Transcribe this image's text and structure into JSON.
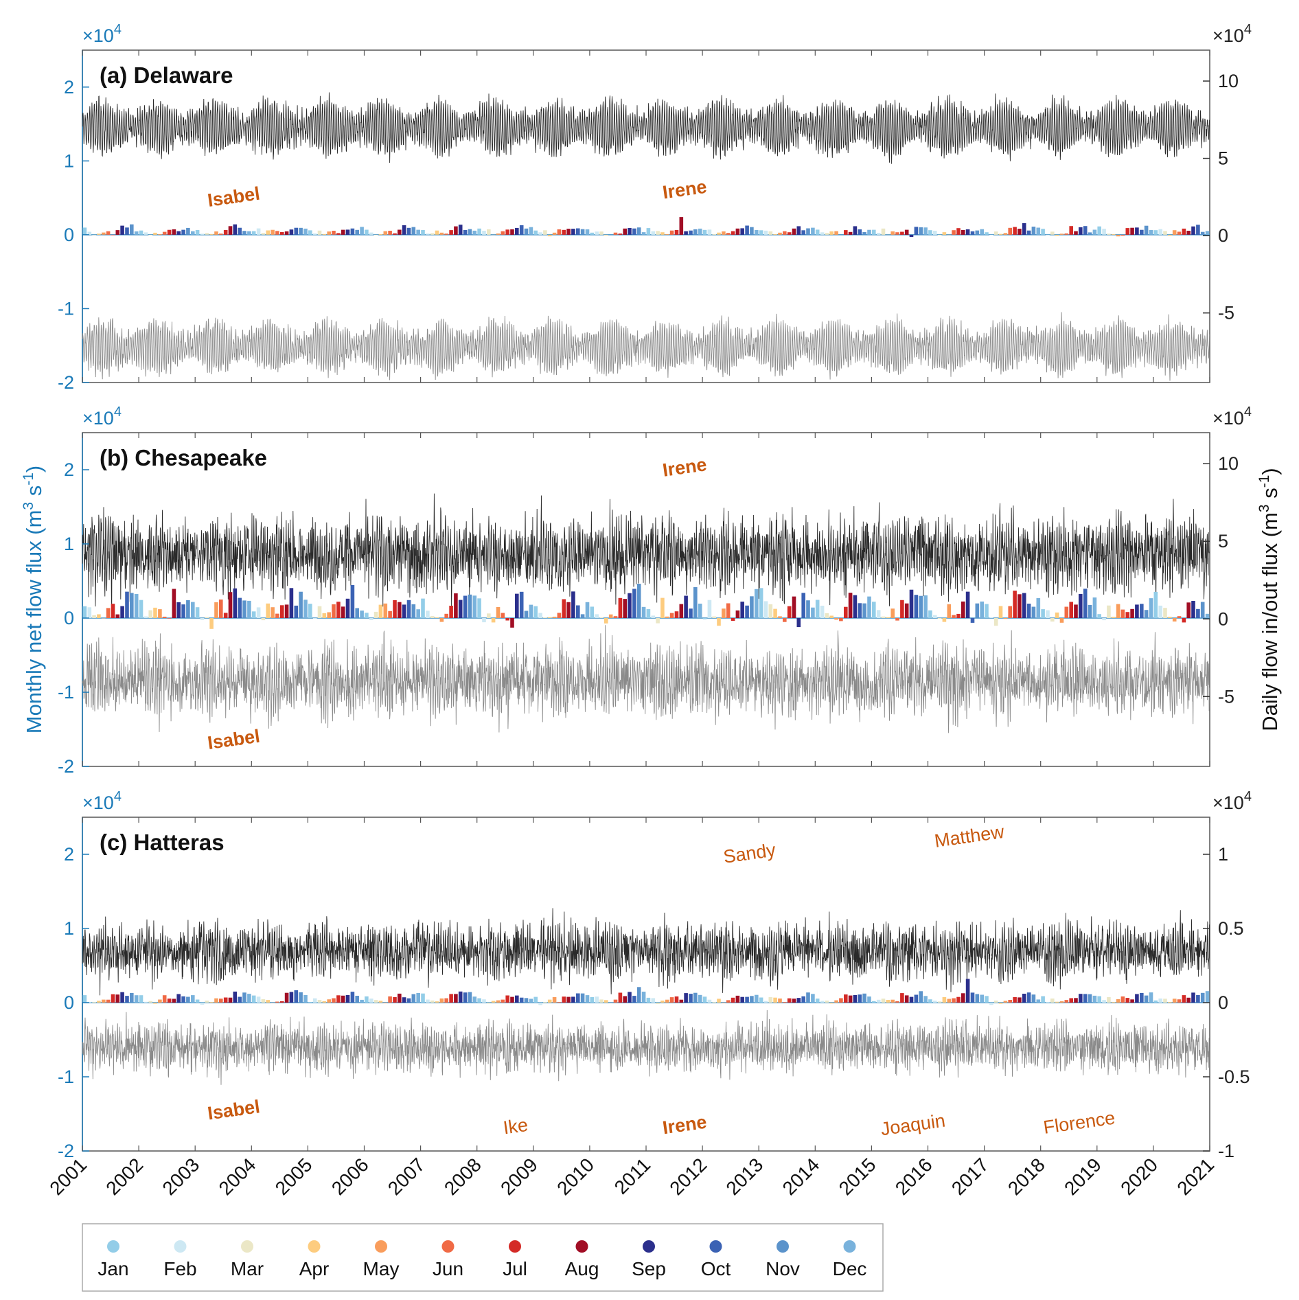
{
  "chart_data": {
    "type": "bar",
    "x_range": [
      2001,
      2021
    ],
    "year_ticks": [
      "2001",
      "2002",
      "2003",
      "2004",
      "2005",
      "2006",
      "2007",
      "2008",
      "2009",
      "2010",
      "2011",
      "2012",
      "2013",
      "2014",
      "2015",
      "2016",
      "2017",
      "2018",
      "2019",
      "2020",
      "2021"
    ],
    "ylabel_left": "Monthly net flow flux (m3 s-1)",
    "ylabel_right": "Daily flow in/out flux (m3 s-1)",
    "left_multiplier": "×10",
    "right_multiplier": "×10",
    "multiplier_exponent": "4",
    "legend": {
      "placement": "bottom-left",
      "months": [
        {
          "label": "Jan",
          "color": "#93cde8"
        },
        {
          "label": "Feb",
          "color": "#cde8f3"
        },
        {
          "label": "Mar",
          "color": "#ebe7c6"
        },
        {
          "label": "Apr",
          "color": "#fdcc7f"
        },
        {
          "label": "May",
          "color": "#f99d5c"
        },
        {
          "label": "Jun",
          "color": "#f06a45"
        },
        {
          "label": "Jul",
          "color": "#d42a26"
        },
        {
          "label": "Aug",
          "color": "#a10e25"
        },
        {
          "label": "Sep",
          "color": "#2b2f8c"
        },
        {
          "label": "Oct",
          "color": "#3b62b4"
        },
        {
          "label": "Nov",
          "color": "#5b93cb"
        },
        {
          "label": "Dec",
          "color": "#79b2dc"
        }
      ]
    },
    "panels": [
      {
        "title": "(a) Delaware",
        "left_ylim": [
          -2,
          2.5
        ],
        "left_ticks": [
          "2",
          "1",
          "0",
          "-1",
          "-2"
        ],
        "right_ylim": [
          -9.5,
          12
        ],
        "right_ticks": [
          "10",
          "5",
          "0",
          "-5"
        ],
        "show_left_multiplier": true,
        "show_right_multiplier": true,
        "monthly_mean": 600,
        "monthly_amp": 350,
        "monthly_noise": 250,
        "monthly_neg_rate": 0.02,
        "daily_in_mean": 7.0,
        "daily_in_amp": 1.7,
        "daily_in_noise": 0.3,
        "daily_out_mean": -7.2,
        "daily_out_amp": 1.6,
        "daily_out_noise": 0.3,
        "spikes": [
          {
            "year": 2011.65,
            "value": 2400
          }
        ],
        "storms": [
          {
            "name": "Isabel",
            "year": 2003.7,
            "value": 4300,
            "bold": true
          },
          {
            "name": "Irene",
            "year": 2011.7,
            "value": 5300,
            "bold": true
          }
        ]
      },
      {
        "title": "(b) Chesapeake",
        "left_ylim": [
          -2,
          2.5
        ],
        "left_ticks": [
          "2",
          "1",
          "0",
          "-1",
          "-2"
        ],
        "right_ylim": [
          -9.5,
          12
        ],
        "right_ticks": [
          "10",
          "5",
          "0",
          "-5"
        ],
        "show_left_multiplier": true,
        "show_right_multiplier": true,
        "monthly_mean": 1700,
        "monthly_amp": 1300,
        "monthly_noise": 900,
        "monthly_neg_rate": 0.05,
        "daily_in_mean": 4.2,
        "daily_in_amp": 1.3,
        "daily_in_noise": 1.0,
        "daily_out_mean": -4.0,
        "daily_out_amp": 1.3,
        "daily_out_noise": 0.9,
        "spikes": [],
        "storms": [
          {
            "name": "Irene",
            "year": 2011.7,
            "value": 19500,
            "bold": true
          },
          {
            "name": "Isabel",
            "year": 2003.7,
            "value": -17200,
            "bold": true
          }
        ]
      },
      {
        "title": "(c) Hatteras",
        "left_ylim": [
          -2,
          2.5
        ],
        "left_ticks": [
          "2",
          "1",
          "0",
          "-1",
          "-2"
        ],
        "right_ylim": [
          -1,
          1.25
        ],
        "right_ticks": [
          "1",
          "0.5",
          "0",
          "-0.5",
          "-1"
        ],
        "show_left_multiplier": true,
        "show_right_multiplier": true,
        "monthly_mean": 700,
        "monthly_amp": 500,
        "monthly_noise": 300,
        "monthly_neg_rate": 0.0,
        "daily_in_mean": 0.35,
        "daily_in_amp": 0.1,
        "daily_in_noise": 0.08,
        "daily_out_mean": -0.3,
        "daily_out_amp": 0.08,
        "daily_out_noise": 0.07,
        "spikes": [
          {
            "year": 2016.75,
            "value": 3200
          },
          {
            "year": 2010.9,
            "value": 2100
          }
        ],
        "storms": [
          {
            "name": "Sandy",
            "year": 2012.85,
            "value": 19300,
            "bold": false
          },
          {
            "name": "Matthew",
            "year": 2016.75,
            "value": 21600,
            "bold": false
          },
          {
            "name": "Isabel",
            "year": 2003.7,
            "value": -15300,
            "bold": true
          },
          {
            "name": "Ike",
            "year": 2008.7,
            "value": -17500,
            "bold": false
          },
          {
            "name": "Irene",
            "year": 2011.7,
            "value": -17300,
            "bold": true
          },
          {
            "name": "Joaquin",
            "year": 2015.75,
            "value": -17300,
            "bold": false
          },
          {
            "name": "Florence",
            "year": 2018.7,
            "value": -17000,
            "bold": false
          }
        ]
      }
    ]
  }
}
